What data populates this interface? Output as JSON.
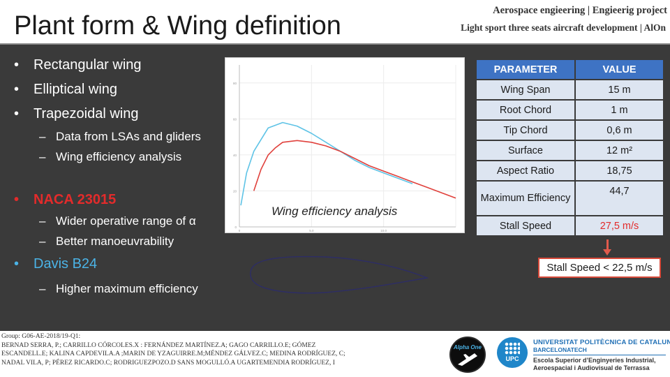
{
  "header": {
    "title": "Plant form & Wing definition",
    "project_line1": "Aerospace engieering | Engieerig project",
    "project_line2": "Light sport three seats aircraft development | AlOn"
  },
  "bullets": {
    "item1": "Rectangular wing",
    "item2": "Elliptical wing",
    "item3": "Trapezoidal wing",
    "sub1": "Data from LSAs and gliders",
    "sub2": "Wing efficiency analysis",
    "item4": "NACA 23015",
    "sub3": "Wider operative range of α",
    "sub4": "Better manoeuvrability",
    "item5": "Davis B24",
    "sub5": "Higher maximum efficiency",
    "bullet_symbol": "•",
    "dash_symbol": "–"
  },
  "chart_caption": "Wing efficiency analysis",
  "chart_data": {
    "type": "line",
    "title": "",
    "xlabel": "",
    "ylabel": "",
    "xlim": [
      0,
      15
    ],
    "ylim": [
      0,
      90
    ],
    "grid": true,
    "series": [
      {
        "color": "#5ec3e6",
        "x": [
          0.1,
          0.5,
          1,
          2,
          3,
          4,
          5,
          6,
          7,
          8,
          9,
          10,
          11,
          12
        ],
        "y": [
          12,
          30,
          42,
          55,
          58,
          56,
          52,
          47,
          42,
          37,
          33,
          30,
          27,
          24
        ]
      },
      {
        "color": "#e0413c",
        "x": [
          1,
          1.5,
          2,
          2.5,
          3,
          4,
          5,
          6,
          7,
          8,
          9,
          10,
          11,
          12,
          13,
          14,
          15
        ],
        "y": [
          20,
          32,
          40,
          44,
          47,
          48,
          47,
          45,
          42,
          38,
          34,
          31,
          28,
          25,
          22,
          19,
          16
        ]
      }
    ],
    "x_ticks": [
      "0",
      "5.0",
      "10.0"
    ],
    "y_ticks": [
      "0",
      "20",
      "40",
      "60",
      "80"
    ]
  },
  "table": {
    "header_param": "PARAMETER",
    "header_value": "VALUE",
    "rows": [
      {
        "param": "Wing Span",
        "value": "15 m"
      },
      {
        "param": "Root Chord",
        "value": "1 m"
      },
      {
        "param": "Tip Chord",
        "value": "0,6 m"
      },
      {
        "param": "Surface",
        "value": "12 m²"
      },
      {
        "param": "Aspect Ratio",
        "value": "18,75"
      },
      {
        "param": "Maximum Efficiency",
        "value": "44,7"
      },
      {
        "param": "Stall Speed",
        "value": "27,5 m/s"
      }
    ]
  },
  "stall_note": "Stall Speed < 22,5 m/s",
  "colors": {
    "accent_red": "#e32b2b",
    "accent_blue": "#4bb3e6",
    "table_header": "#3e73c4",
    "table_cell": "#dde5f1"
  },
  "footer": {
    "line1": "Group: G06-AE-2018/19-Q1:",
    "line2": "BERNAD SERRA, P.; CARRILLO CÓRCOLES.X : FERNÁNDEZ MARTÍNEZ.A; GAGO CARRILLO.E; GÓMEZ",
    "line3": "ESCANDELL.E; KALINA CAPDEVILA.A ;MARIN DE YZAGUIRRE.M;MÉNDEZ GÁLVEZ.C; MEDINA RODRÍGUEZ, C;",
    "line4": "NADAL VILA, P; PÉREZ RICARDO.C; RODRIGUEZPOZO.D SANS MOGULLÓ.A UGARTEMENDIA RODRÍGUEZ, I",
    "alpha_logo_text": "Alpha One",
    "upc_logo_text": "UPC",
    "university_line1": "UNIVERSITAT POLITÈCNICA DE CATALUNYA",
    "university_line2": "BARCELONATECH",
    "school_line1": "Escola Superior d’Enginyeries Industrial,",
    "school_line2": "Aeroespacial i Audiovisual de Terrassa"
  }
}
